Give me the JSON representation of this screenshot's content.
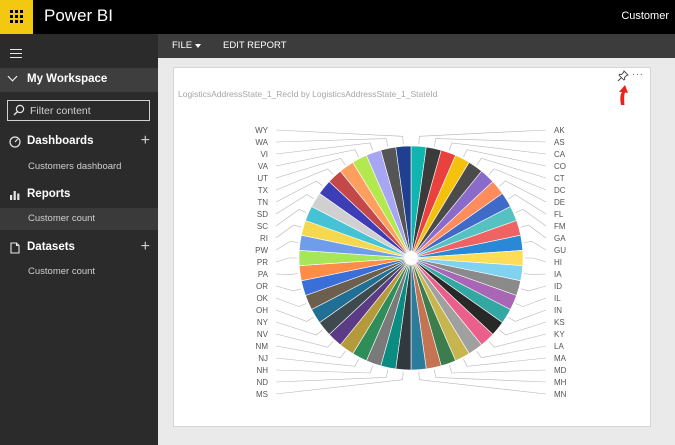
{
  "app": {
    "title": "Power BI",
    "user": "Customer"
  },
  "sidebar": {
    "workspace": "My Workspace",
    "filter_placeholder": "Filter content",
    "sections": [
      {
        "title": "Dashboards",
        "items": [
          "Customers dashboard"
        ]
      },
      {
        "title": "Reports",
        "items": [
          "Customer count"
        ]
      },
      {
        "title": "Datasets",
        "items": [
          "Customer count"
        ]
      }
    ]
  },
  "toolbar": {
    "file_label": "FILE",
    "edit_label": "EDIT REPORT"
  },
  "tile": {
    "more_label": "···"
  },
  "colors": {
    "accent": "#f2c811",
    "topbar": "#000000",
    "sidebar": "#2b2b2b",
    "pin_arrow": "#e8231c"
  },
  "chart_data": {
    "type": "pie",
    "title": "LogisticsAddressState_1_RecId by LogisticsAddressState_1_StateId",
    "categories": [
      "AK",
      "AS",
      "CA",
      "CO",
      "CT",
      "DC",
      "DE",
      "FL",
      "FM",
      "GA",
      "GU",
      "HI",
      "IA",
      "ID",
      "IL",
      "IN",
      "KS",
      "KY",
      "LA",
      "MA",
      "MD",
      "MH",
      "MN",
      "MS",
      "ND",
      "NH",
      "NJ",
      "NM",
      "NV",
      "NY",
      "OH",
      "OK",
      "OR",
      "PA",
      "PR",
      "PW",
      "RI",
      "SC",
      "SD",
      "TN",
      "TX",
      "UT",
      "VA",
      "VI",
      "WA",
      "WY"
    ],
    "values": [
      1,
      1,
      1,
      1,
      1,
      1,
      1,
      1,
      1,
      1,
      1,
      1,
      1,
      1,
      1,
      1,
      1,
      1,
      1,
      1,
      1,
      1,
      1,
      1,
      1,
      1,
      1,
      1,
      1,
      1,
      1,
      1,
      1,
      1,
      1,
      1,
      1,
      1,
      1,
      1,
      1,
      1,
      1,
      1,
      1,
      1
    ],
    "slice_colors": [
      "#0fb5ae",
      "#3b3b3b",
      "#e9413d",
      "#f4c20d",
      "#4b4b4b",
      "#8a6bc9",
      "#fe8c5c",
      "#3f6ac7",
      "#55c2c1",
      "#f06363",
      "#2a89d6",
      "#fddd55",
      "#7fd2f0",
      "#8a8a8a",
      "#a866b5",
      "#33a7a1",
      "#282828",
      "#ea5f8b",
      "#a0a0a0",
      "#c7b54f",
      "#3c7d4d",
      "#c37553",
      "#2b7c9b",
      "#31393f",
      "#0b8c82",
      "#7a7a7a",
      "#2e8d58",
      "#b49a3a",
      "#5b3a86",
      "#3f4a4f",
      "#216f94",
      "#6d5f4e",
      "#3a6fd9",
      "#ff8c47",
      "#a5e65a",
      "#6f9dea",
      "#f6d84f",
      "#45c2d4",
      "#d0d0d0",
      "#3d3db6",
      "#c44848",
      "#ff9f5f",
      "#b3e84e",
      "#a6a6f2",
      "#555555",
      "#1f3f8f"
    ],
    "legend": "none"
  }
}
